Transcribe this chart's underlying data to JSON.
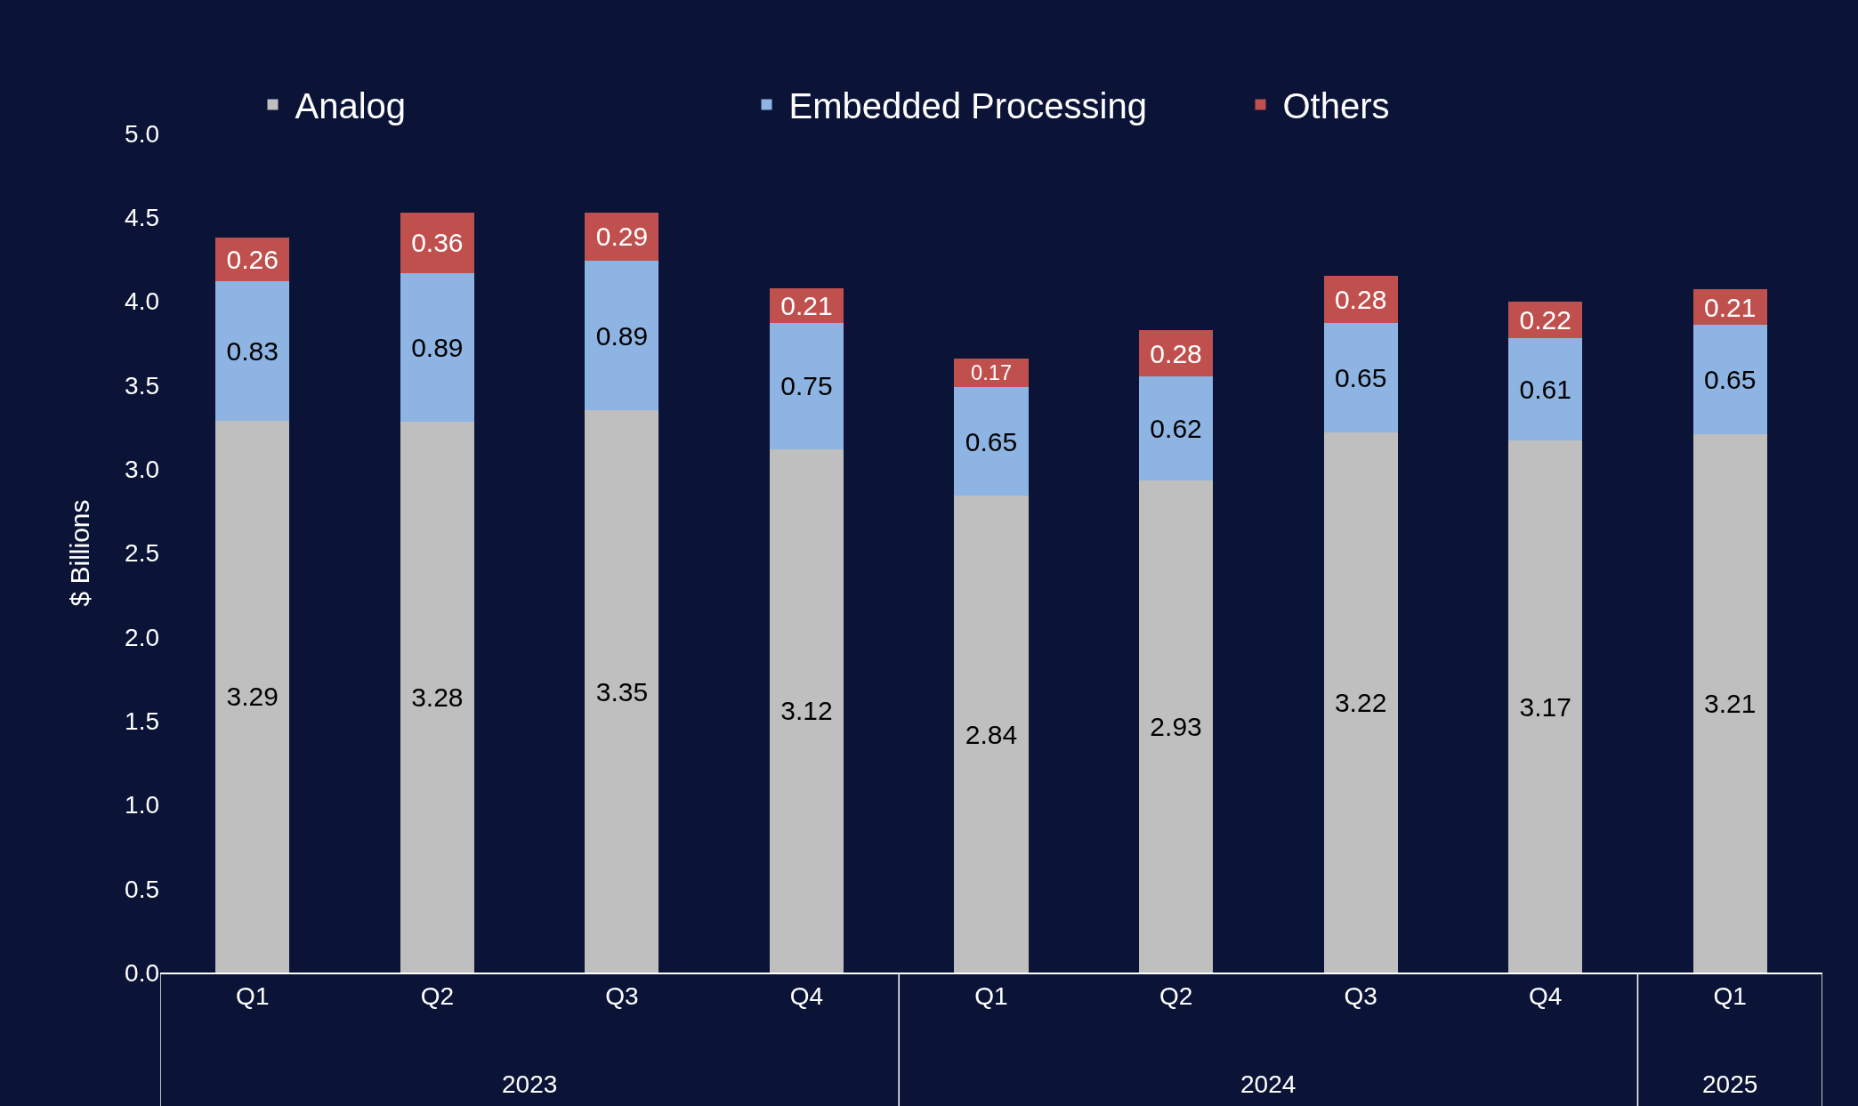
{
  "chart_data": {
    "type": "bar",
    "stacked": true,
    "ylabel": "$ Billions",
    "categories": [
      "Q1",
      "Q2",
      "Q3",
      "Q4",
      "Q1",
      "Q2",
      "Q3",
      "Q4",
      "Q1"
    ],
    "annotations": [
      "2023",
      "2024",
      "2025"
    ],
    "series": [
      {
        "name": "Analog",
        "color": "#bfbfbf",
        "values": [
          3.29,
          3.28,
          3.35,
          3.12,
          2.84,
          2.93,
          3.22,
          3.17,
          3.21
        ]
      },
      {
        "name": "Embedded Processing",
        "color": "#8db4e2",
        "values": [
          0.83,
          0.89,
          0.89,
          0.75,
          0.65,
          0.62,
          0.65,
          0.61,
          0.65
        ]
      },
      {
        "name": "Others",
        "color": "#c0504d",
        "values": [
          0.26,
          0.36,
          0.29,
          0.21,
          0.17,
          0.28,
          0.28,
          0.22,
          0.21
        ]
      }
    ],
    "ylim": [
      0,
      5
    ],
    "yticks": [
      {
        "value": 0,
        "label": "0.0"
      },
      {
        "value": 0.5,
        "label": "0.5"
      },
      {
        "value": 1,
        "label": "1.0"
      },
      {
        "value": 1.5,
        "label": "1.5"
      },
      {
        "value": 2,
        "label": "2.0"
      },
      {
        "value": 2.5,
        "label": "2.5"
      },
      {
        "value": 3,
        "label": "3.0"
      },
      {
        "value": 3.5,
        "label": "3.5"
      },
      {
        "value": 4,
        "label": "4.0"
      },
      {
        "value": 4.5,
        "label": "4.5"
      },
      {
        "value": 5,
        "label": "5.0"
      }
    ],
    "grid": false,
    "legend": "top",
    "data_labels": true
  }
}
